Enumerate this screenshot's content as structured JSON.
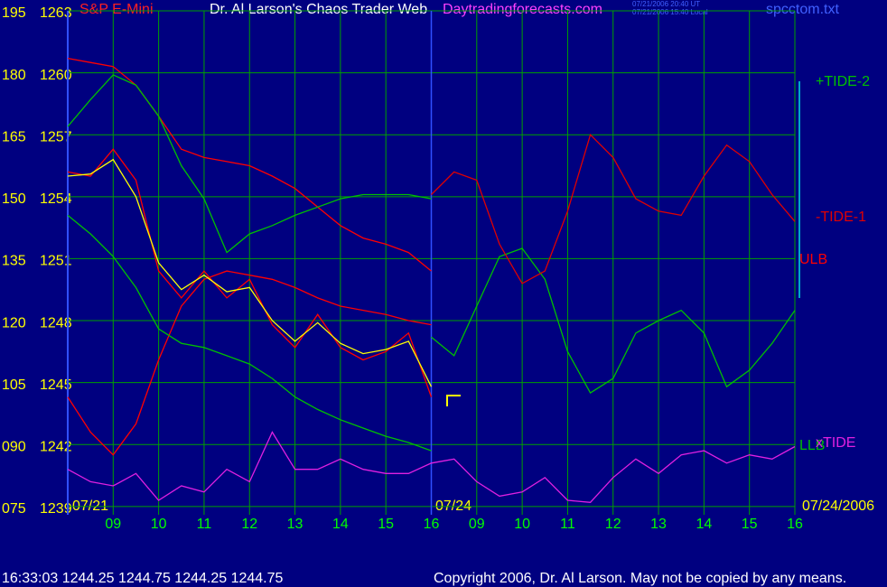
{
  "chart_data": {
    "type": "line",
    "subtitle": "S&P E-Mini",
    "title": "Dr. Al Larson's Chaos Trader Web",
    "website": "Daytradingforecasts.com",
    "timestamps": [
      "07/21/2006 20:40 UT",
      "07/21/2006 15:40 Local"
    ],
    "file": "spcctom.txt",
    "date_labels": [
      "07/21",
      "07/24",
      "07/24/2006"
    ],
    "status": "16:33:03  1244.25 1244.75 1244.25 1244.75",
    "copyright": "Copyright 2006, Dr. Al Larson. May not be copied by any means.",
    "grid": true,
    "xlim": [
      0,
      16
    ],
    "xticks": [
      {
        "value": 1,
        "label": "09"
      },
      {
        "value": 2,
        "label": "10"
      },
      {
        "value": 3,
        "label": "11"
      },
      {
        "value": 4,
        "label": "12"
      },
      {
        "value": 5,
        "label": "13"
      },
      {
        "value": 6,
        "label": "14"
      },
      {
        "value": 7,
        "label": "15"
      },
      {
        "value": 8,
        "label": "16"
      },
      {
        "value": 9,
        "label": "09"
      },
      {
        "value": 10,
        "label": "10"
      },
      {
        "value": 11,
        "label": "11"
      },
      {
        "value": 12,
        "label": "12"
      },
      {
        "value": 13,
        "label": "13"
      },
      {
        "value": 14,
        "label": "14"
      },
      {
        "value": 15,
        "label": "15"
      },
      {
        "value": 16,
        "label": "16"
      }
    ],
    "ylim": [
      1238.6,
      1263
    ],
    "yticks": [
      1239,
      1242,
      1245,
      1248,
      1251,
      1254,
      1257,
      1260,
      1263
    ],
    "y2lim": [
      73,
      195
    ],
    "y2ticks": [
      {
        "value": 75,
        "label": "075"
      },
      {
        "value": 90,
        "label": "090"
      },
      105,
      120,
      135,
      150,
      165,
      180,
      195
    ],
    "x": [
      0,
      0.5,
      1,
      1.5,
      2,
      2.5,
      3,
      3.5,
      4,
      4.5,
      5,
      5.5,
      6,
      6.5,
      7,
      7.5,
      8,
      8.5,
      9,
      9.5,
      10,
      10.5,
      11,
      11.5,
      12,
      12.5,
      13,
      13.5,
      14,
      14.5,
      15,
      15.5,
      16
    ],
    "series": [
      {
        "color": "#ff0000",
        "values": [
          1260.7,
          1260.5,
          1260.3,
          1259.4,
          1257.9,
          1256.3,
          1255.9,
          1255.7,
          1255.5,
          1255.0,
          1254.4,
          1253.5,
          1252.6,
          1252.0,
          1251.7,
          1251.3,
          1250.4,
          null,
          null,
          null,
          null,
          null,
          null,
          null,
          null,
          null,
          null,
          null,
          null,
          null,
          null,
          null,
          null
        ]
      },
      {
        "color": "#ff0000",
        "values": [
          1244.3,
          1242.6,
          1241.5,
          1243.0,
          1246.1,
          1248.7,
          1250.0,
          1250.4,
          1250.2,
          1250.0,
          1249.6,
          1249.1,
          1248.7,
          1248.5,
          1248.3,
          1248.0,
          1247.8,
          null,
          null,
          null,
          null,
          null,
          null,
          null,
          null,
          null,
          null,
          null,
          null,
          null,
          null,
          null,
          null
        ]
      },
      {
        "color": "#00c000",
        "values": [
          1257.4,
          1258.7,
          1259.9,
          1259.4,
          1257.9,
          1255.5,
          1253.9,
          1251.3,
          1252.2,
          1252.6,
          1253.1,
          1253.5,
          1253.9,
          1254.1,
          1254.1,
          1254.1,
          1253.9,
          null,
          null,
          null,
          null,
          null,
          null,
          null,
          null,
          null,
          null,
          null,
          null,
          null,
          null,
          null,
          null
        ]
      },
      {
        "name": "LLB",
        "color": "#00c000",
        "values": [
          1253.1,
          1252.2,
          1251.1,
          1249.6,
          1247.6,
          1246.9,
          1246.7,
          1246.3,
          1245.9,
          1245.2,
          1244.3,
          1243.7,
          1243.2,
          1242.8,
          1242.4,
          1242.1,
          1241.7,
          null,
          null,
          null,
          null,
          null,
          null,
          null,
          null,
          null,
          null,
          null,
          null,
          null,
          null,
          null,
          null
        ]
      },
      {
        "color": "#ff0000",
        "values": [
          1255.2,
          1255.0,
          1256.3,
          1254.8,
          1250.4,
          1249.1,
          1250.4,
          1249.1,
          1250.0,
          1247.8,
          1246.7,
          1248.3,
          1246.7,
          1246.1,
          1246.5,
          1247.4,
          1244.3,
          null,
          null,
          null,
          null,
          null,
          null,
          null,
          null,
          null,
          null,
          null,
          null,
          null,
          null,
          null,
          null
        ]
      },
      {
        "color": "#ffff00",
        "values": [
          1255.0,
          1255.1,
          1255.8,
          1254.0,
          1250.8,
          1249.5,
          1250.2,
          1249.4,
          1249.6,
          1248.0,
          1247.0,
          1247.9,
          1246.9,
          1246.4,
          1246.6,
          1247.0,
          1244.8,
          null,
          null,
          null,
          null,
          null,
          null,
          null,
          null,
          null,
          null,
          null,
          null,
          null,
          null,
          null,
          null
        ]
      },
      {
        "name": "+TIDE-2",
        "color": "#00c000",
        "values": [
          null,
          null,
          null,
          null,
          null,
          null,
          null,
          null,
          null,
          null,
          null,
          null,
          null,
          null,
          null,
          null,
          1247.2,
          1246.3,
          1248.7,
          1251.1,
          1251.5,
          1250.0,
          1246.5,
          1244.5,
          1245.2,
          1247.4,
          1248.0,
          1248.5,
          1247.4,
          1244.8,
          1245.6,
          1246.9,
          1248.5
        ]
      },
      {
        "name": "-TIDE-1",
        "color": "#e00000",
        "values": [
          null,
          null,
          null,
          null,
          null,
          null,
          null,
          null,
          null,
          null,
          null,
          null,
          null,
          null,
          null,
          null,
          1254.1,
          1255.2,
          1254.8,
          1251.7,
          1249.8,
          1250.4,
          1253.3,
          1257.0,
          1255.9,
          1253.9,
          1253.3,
          1253.1,
          1255.0,
          1256.5,
          1255.7,
          1254.1,
          1252.8
        ]
      },
      {
        "name": "ULB",
        "color": "#ff0000",
        "values": [
          null,
          null,
          null,
          null,
          null,
          null,
          null,
          null,
          null,
          null,
          null,
          null,
          null,
          null,
          null,
          null,
          null,
          null,
          null,
          null,
          null,
          null,
          null,
          null,
          null,
          null,
          null,
          null,
          null,
          null,
          null,
          null,
          null
        ]
      },
      {
        "name": "xTIDE",
        "color": "#e020e0",
        "values": [
          1240.8,
          1240.2,
          1240.0,
          1240.6,
          1239.3,
          1240.0,
          1239.7,
          1240.8,
          1240.2,
          1242.6,
          1240.8,
          1240.8,
          1241.3,
          1240.8,
          1240.6,
          1240.6,
          1241.1,
          1241.3,
          1240.2,
          1239.5,
          1239.7,
          1240.4,
          1239.3,
          1239.2,
          1240.4,
          1241.3,
          1240.6,
          1241.5,
          1241.7,
          1241.1,
          1241.5,
          1241.3,
          1241.9
        ]
      }
    ]
  }
}
